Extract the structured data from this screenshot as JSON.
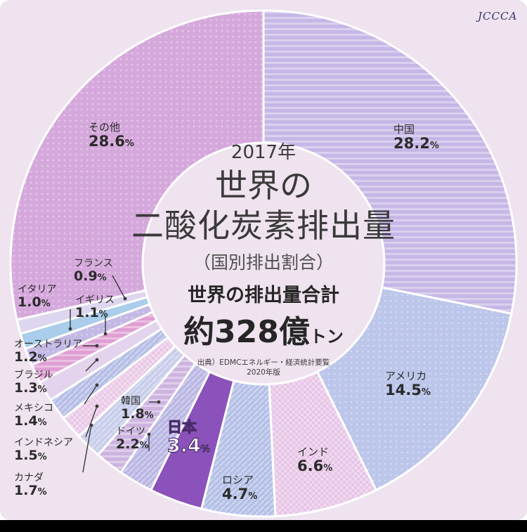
{
  "logo": "JCCCA",
  "center": {
    "year": "2017年",
    "title_line1": "世界の",
    "title_line2": "二酸化炭素排出量",
    "subtitle": "（国別排出割合）",
    "total_label": "世界の排出量合計",
    "total_value": "約328億",
    "total_unit": "トン",
    "source_line1": "出典）EDMCエネルギー・経済統計要覧",
    "source_line2": "2020年版"
  },
  "chart_data": {
    "type": "pie",
    "donut": true,
    "unit": "%",
    "slices": [
      {
        "name": "中国",
        "value": 28.2,
        "label": "28.2",
        "color": "#c6b7e6",
        "pattern": "hstripe"
      },
      {
        "name": "アメリカ",
        "value": 14.5,
        "label": "14.5",
        "color": "#bcc6ea",
        "pattern": "dots"
      },
      {
        "name": "インド",
        "value": 6.6,
        "label": "6.6",
        "color": "#e7c4e6",
        "pattern": "check"
      },
      {
        "name": "ロシア",
        "value": 4.7,
        "label": "4.7",
        "color": "#b3bfe6",
        "pattern": "diag"
      },
      {
        "name": "日本",
        "value": 3.4,
        "label": "3.4",
        "color": "#8b52bb",
        "pattern": "solid"
      },
      {
        "name": "ドイツ",
        "value": 2.2,
        "label": "2.2",
        "color": "#b9b6e3",
        "pattern": "diag"
      },
      {
        "name": "韓国",
        "value": 1.8,
        "label": "1.8",
        "color": "#cdb4e0",
        "pattern": "hstripe"
      },
      {
        "name": "カナダ",
        "value": 1.7,
        "label": "1.7",
        "color": "#c7cdea",
        "pattern": "diag"
      },
      {
        "name": "インドネシア",
        "value": 1.5,
        "label": "1.5",
        "color": "#eac8e6",
        "pattern": "check"
      },
      {
        "name": "メキシコ",
        "value": 1.4,
        "label": "1.4",
        "color": "#b5bde6",
        "pattern": "diag"
      },
      {
        "name": "ブラジル",
        "value": 1.3,
        "label": "1.3",
        "color": "#e3d3ec",
        "pattern": "solid"
      },
      {
        "name": "オーストラリア",
        "value": 1.2,
        "label": "1.2",
        "color": "#df9fd3",
        "pattern": "hstripe"
      },
      {
        "name": "イギリス",
        "value": 1.1,
        "label": "1.1",
        "color": "#c4b9e4",
        "pattern": "dots"
      },
      {
        "name": "イタリア",
        "value": 1.0,
        "label": "1.0",
        "color": "#a9cdea",
        "pattern": "solid"
      },
      {
        "name": "フランス",
        "value": 0.9,
        "label": "0.9",
        "color": "#ddd6ee",
        "pattern": "solid"
      },
      {
        "name": "その他",
        "value": 28.6,
        "label": "28.6",
        "color": "#d5a8dc",
        "pattern": "dots"
      }
    ]
  }
}
